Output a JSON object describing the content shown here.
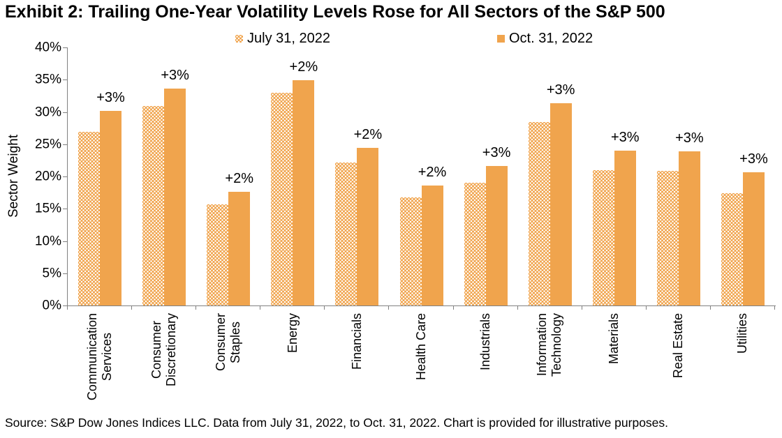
{
  "source_note": "Source: S&P Dow Jones Indices LLC. Data from July 31, 2022, to Oct. 31, 2022. Chart is provided for illustrative purposes.",
  "colors": {
    "bar_orange": "#F0A44D",
    "axis_gray": "#808080",
    "text_black": "#000000",
    "background": "#FFFFFF"
  },
  "chart_data": {
    "type": "bar",
    "title": "Exhibit 2: Trailing One-Year Volatility Levels Rose for All Sectors of the S&P 500",
    "xlabel": "",
    "ylabel": "Sector Weight",
    "ylim": [
      0,
      40
    ],
    "ytick_step": 5,
    "ytick_suffix": "%",
    "grid": false,
    "legend_position": "top",
    "categories": [
      "Communication Services",
      "Consumer Discretionary",
      "Consumer Staples",
      "Energy",
      "Financials",
      "Health Care",
      "Industrials",
      "Information Technology",
      "Materials",
      "Real Estate",
      "Utilities"
    ],
    "category_tick_lines": [
      [
        "Communication",
        "Services"
      ],
      [
        "Consumer",
        "Discretionary"
      ],
      [
        "Consumer",
        "Staples"
      ],
      [
        "Energy"
      ],
      [
        "Financials"
      ],
      [
        "Health Care"
      ],
      [
        "Industrials"
      ],
      [
        "Information",
        "Technology"
      ],
      [
        "Materials"
      ],
      [
        "Real Estate"
      ],
      [
        "Utilities"
      ]
    ],
    "series": [
      {
        "name": "July 31, 2022",
        "fill": "dotted",
        "values": [
          26.9,
          30.9,
          15.7,
          33.0,
          22.2,
          16.8,
          19.0,
          28.4,
          21.0,
          20.9,
          17.4
        ]
      },
      {
        "name": "Oct. 31, 2022",
        "fill": "solid",
        "values": [
          30.2,
          33.6,
          17.6,
          34.9,
          24.4,
          18.6,
          21.6,
          31.4,
          24.0,
          23.9,
          20.6
        ]
      }
    ],
    "bar_labels": [
      "+3%",
      "+3%",
      "+2%",
      "+2%",
      "+2%",
      "+2%",
      "+3%",
      "+3%",
      "+3%",
      "+3%",
      "+3%"
    ]
  }
}
